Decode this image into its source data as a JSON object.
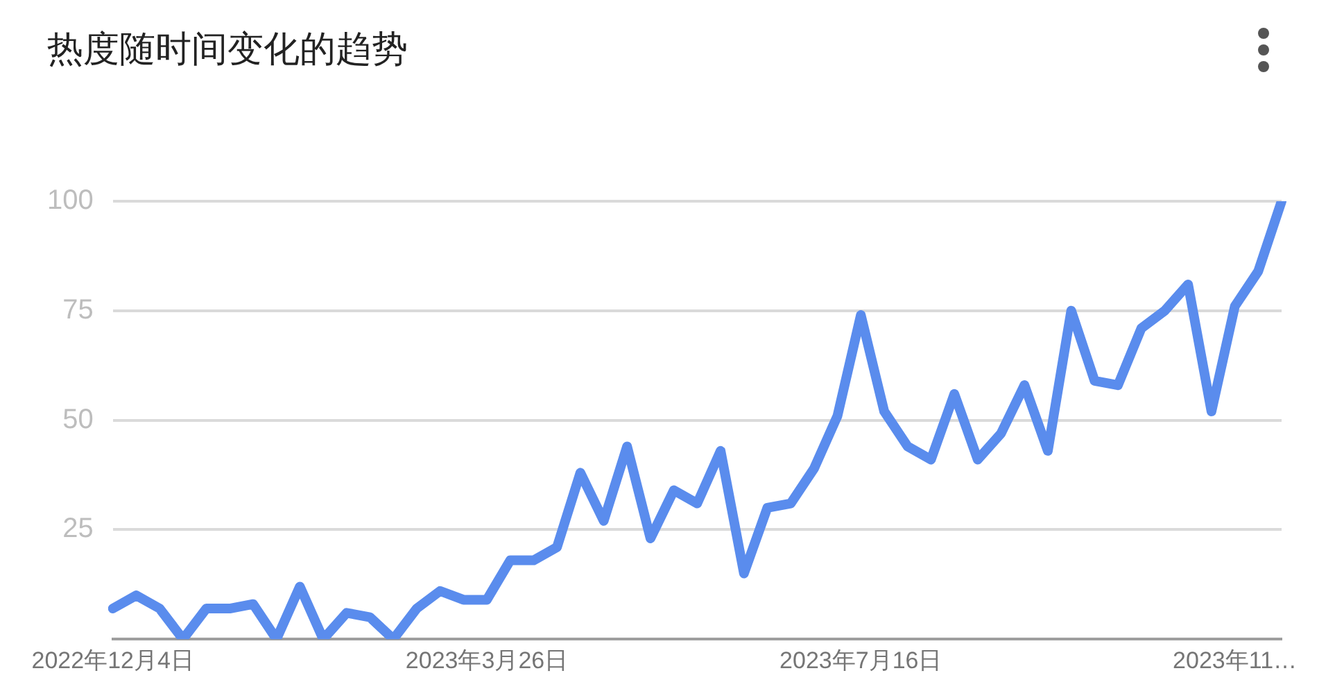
{
  "chart_data": {
    "type": "line",
    "title": "热度随时间变化的趋势",
    "categories": [
      "2022年12月4日",
      null,
      null,
      null,
      null,
      null,
      null,
      null,
      null,
      null,
      null,
      null,
      null,
      null,
      null,
      null,
      "2023年3月26日",
      null,
      null,
      null,
      null,
      null,
      null,
      null,
      null,
      null,
      null,
      null,
      null,
      null,
      null,
      null,
      "2023年7月16日",
      null,
      null,
      null,
      null,
      null,
      null,
      null,
      null,
      null,
      null,
      null,
      null,
      null,
      null,
      null,
      "2023年11…",
      null,
      null
    ],
    "series": [
      {
        "color": "#5a8ced",
        "values": [
          7,
          10,
          7,
          0,
          7,
          7,
          8,
          0,
          12,
          0,
          6,
          5,
          0,
          7,
          11,
          9,
          9,
          18,
          18,
          21,
          38,
          27,
          44,
          23,
          34,
          31,
          43,
          15,
          30,
          31,
          39,
          51,
          74,
          52,
          44,
          41,
          56,
          41,
          47,
          58,
          43,
          75,
          59,
          58,
          71,
          75,
          81,
          52,
          76,
          84,
          100
        ]
      }
    ],
    "ylim": [
      0,
      100
    ],
    "yticks": [
      25,
      50,
      75,
      100
    ],
    "grid": "y",
    "legend": false,
    "marker": "none",
    "line_style": "solid"
  }
}
